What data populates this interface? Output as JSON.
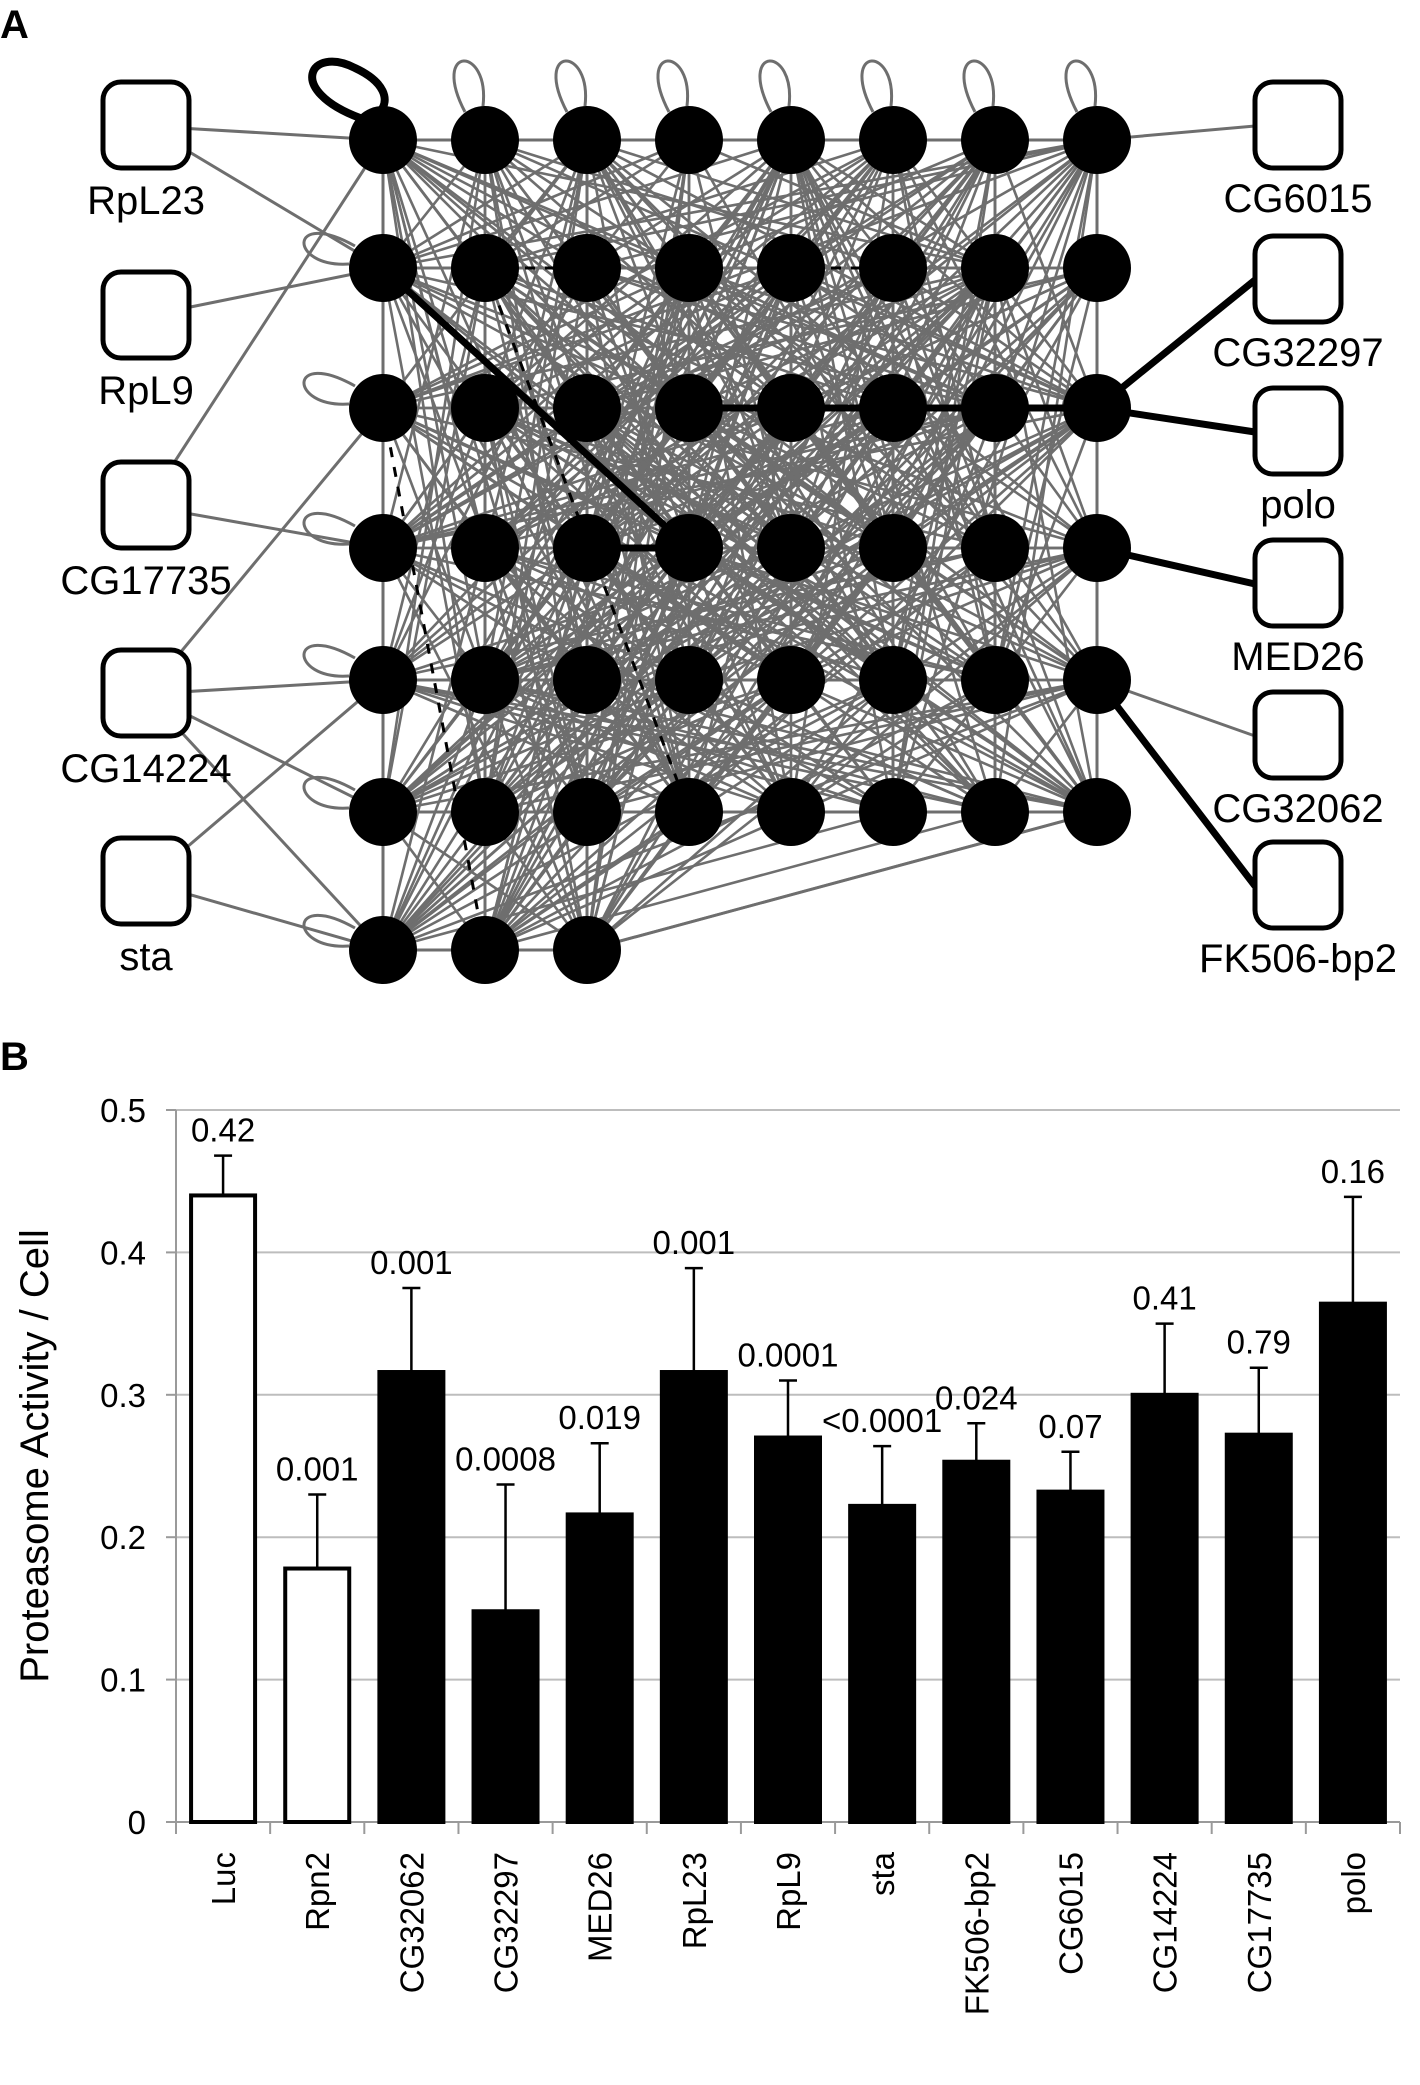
{
  "panel_a": {
    "label": "A",
    "left_genes": [
      "RpL23",
      "RpL9",
      "CG17735",
      "CG14224",
      "sta"
    ],
    "right_genes": [
      "CG6015",
      "CG32297",
      "polo",
      "MED26",
      "CG32062",
      "FK506-bp2"
    ]
  },
  "panel_b": {
    "label": "B"
  },
  "chart_data": {
    "type": "bar",
    "title": "",
    "xlabel": "",
    "ylabel": "Proteasome Activity / Cell",
    "ylim": [
      0,
      0.5
    ],
    "yticks": [
      "0",
      "0.1",
      "0.2",
      "0.3",
      "0.4",
      "0.5"
    ],
    "grid": true,
    "categories": [
      "Luc",
      "Rpn2",
      "CG32062",
      "CG32297",
      "MED26",
      "RpL23",
      "RpL9",
      "sta",
      "FK506-bp2",
      "CG6015",
      "CG14224",
      "CG17735",
      "polo"
    ],
    "values": [
      0.44,
      0.178,
      0.316,
      0.148,
      0.216,
      0.316,
      0.27,
      0.222,
      0.253,
      0.232,
      0.3,
      0.272,
      0.364
    ],
    "error": [
      0.028,
      0.052,
      0.059,
      0.089,
      0.05,
      0.073,
      0.04,
      0.042,
      0.027,
      0.028,
      0.05,
      0.047,
      0.075
    ],
    "fill": [
      "white",
      "white",
      "black",
      "black",
      "black",
      "black",
      "black",
      "black",
      "black",
      "black",
      "black",
      "black",
      "black"
    ],
    "annotations": [
      "0.42",
      "0.001",
      "0.001",
      "0.0008",
      "0.019",
      "0.001",
      "0.0001",
      "<0.0001",
      "0.024",
      "0.07",
      "0.41",
      "0.79",
      "0.16"
    ]
  }
}
